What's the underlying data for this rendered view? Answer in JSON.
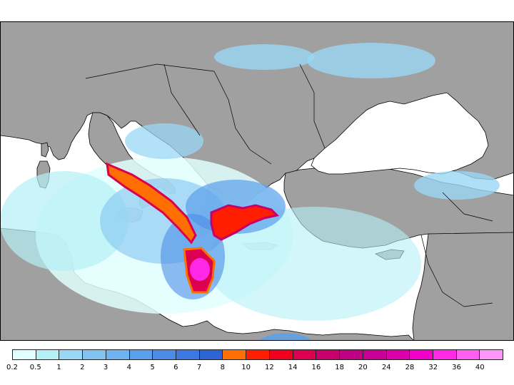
{
  "map": {
    "ocean_color": "#ffffff",
    "land_color": "#a0a0a0",
    "border_color": "#000000"
  },
  "legend": {
    "labels": [
      "0.2",
      "0.5",
      "1",
      "2",
      "3",
      "4",
      "5",
      "6",
      "7",
      "8",
      "10",
      "12",
      "14",
      "16",
      "18",
      "20",
      "24",
      "28",
      "32",
      "36",
      "40"
    ],
    "colors": [
      "#e0ffff",
      "#b4f0f5",
      "#9ad7f5",
      "#82c3f0",
      "#6eb4f0",
      "#5aa0eb",
      "#4b8ce6",
      "#3c78e1",
      "#2d64d2",
      "#ff6e00",
      "#ff1e00",
      "#f0001e",
      "#dc0050",
      "#c8006e",
      "#be0082",
      "#c80096",
      "#dc00aa",
      "#f000c8",
      "#ff28e6",
      "#ff5ff0",
      "#ff96fa"
    ]
  }
}
